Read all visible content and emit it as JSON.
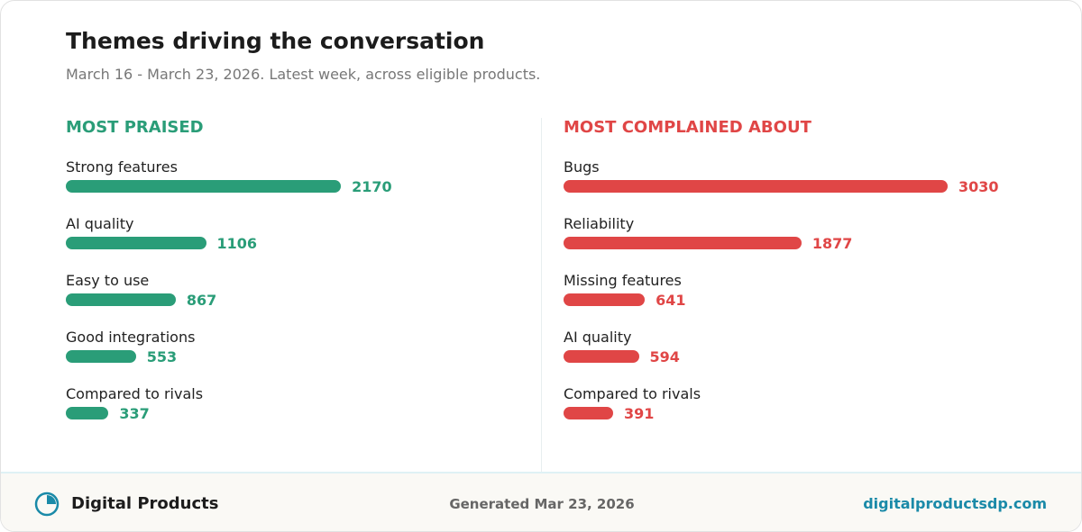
{
  "header": {
    "title": "Themes driving the conversation",
    "subtitle": "March 16 - March 23, 2026. Latest week, across eligible products."
  },
  "chart_data": [
    {
      "type": "bar",
      "title": "MOST PRAISED",
      "color": "#2a9d78",
      "categories": [
        "Strong features",
        "AI quality",
        "Easy to use",
        "Good integrations",
        "Compared to rivals"
      ],
      "values": [
        2170,
        1106,
        867,
        553,
        337
      ]
    },
    {
      "type": "bar",
      "title": "MOST COMPLAINED ABOUT",
      "color": "#e04646",
      "categories": [
        "Bugs",
        "Reliability",
        "Missing features",
        "AI quality",
        "Compared to rivals"
      ],
      "values": [
        3030,
        1877,
        641,
        594,
        391
      ]
    }
  ],
  "footer": {
    "brand": "Digital Products",
    "generated": "Generated Mar 23, 2026",
    "url": "digitalproductsdp.com"
  }
}
